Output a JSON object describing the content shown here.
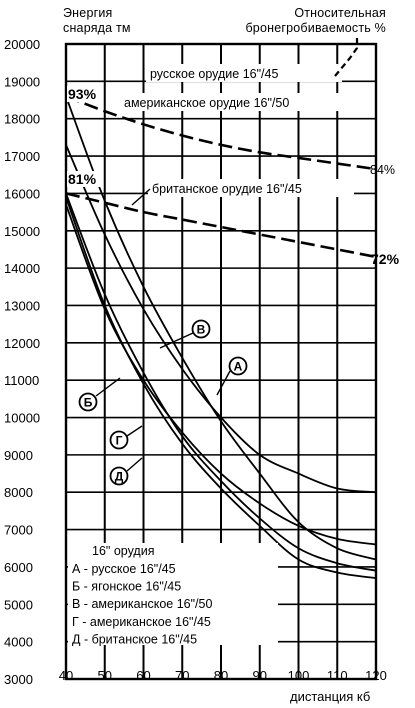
{
  "header": {
    "left_title_1": "Энергия",
    "left_title_2": "снаряда  тм",
    "right_title_1": "Относительная",
    "right_title_2": "бронегробиваемость  %"
  },
  "chart_data": {
    "type": "line",
    "xlabel": "дистанция  кб",
    "ylabel": "Энергия снаряда  тм",
    "xlim": [
      40,
      120
    ],
    "ylim": [
      3000,
      20000
    ],
    "x_ticks": [
      40,
      50,
      60,
      70,
      80,
      90,
      100,
      110,
      120
    ],
    "y_ticks": [
      3000,
      4000,
      5000,
      6000,
      7000,
      8000,
      9000,
      10000,
      11000,
      12000,
      13000,
      14000,
      15000,
      16000,
      17000,
      18000,
      19000,
      20000
    ],
    "grid": true,
    "series": [
      {
        "key": "А",
        "x": [
          40,
          50,
          60,
          70,
          80,
          90,
          100,
          110,
          120
        ],
        "y": [
          17300,
          14900,
          12900,
          11300,
          10000,
          9000,
          8500,
          8100,
          8000
        ]
      },
      {
        "key": "Б",
        "x": [
          40,
          50,
          60,
          70,
          80,
          90,
          100,
          110,
          120
        ],
        "y": [
          15700,
          12900,
          11000,
          9600,
          8500,
          7700,
          7100,
          6750,
          6600
        ]
      },
      {
        "key": "В",
        "x": [
          40,
          50,
          60,
          70,
          80,
          90,
          100,
          110,
          120
        ],
        "y": [
          18600,
          15800,
          13500,
          11600,
          9900,
          8500,
          7200,
          6500,
          6200
        ]
      },
      {
        "key": "Г",
        "x": [
          40,
          50,
          60,
          70,
          80,
          90,
          100,
          110,
          120
        ],
        "y": [
          16000,
          13300,
          11200,
          9500,
          8300,
          7300,
          6500,
          6100,
          5900
        ]
      },
      {
        "key": "Д",
        "x": [
          40,
          50,
          60,
          70,
          80,
          90,
          100,
          110,
          120
        ],
        "y": [
          15900,
          13000,
          10900,
          9300,
          8100,
          7100,
          6200,
          5850,
          5700
        ]
      }
    ],
    "relative_penetration": [
      {
        "name": "русское орудие 16\"/45",
        "flat_at": 100,
        "x": [
          40,
          120
        ],
        "y": [
          19100,
          19100
        ],
        "end_label": ""
      },
      {
        "name": "американское орудие 16\"/50",
        "start_label": "93%",
        "end_label": "84%",
        "x": [
          40,
          50,
          60,
          70,
          80,
          90,
          100,
          110,
          120
        ],
        "y": [
          18600,
          18200,
          17850,
          17550,
          17300,
          17100,
          16950,
          16800,
          16650
        ]
      },
      {
        "name": "британское орудие 16\"/45",
        "start_label": "81%",
        "end_label": "72%",
        "x": [
          40,
          50,
          60,
          70,
          80,
          90,
          100,
          110,
          120
        ],
        "y": [
          16000,
          15750,
          15500,
          15300,
          15100,
          14900,
          14700,
          14500,
          14300
        ]
      }
    ],
    "legend": {
      "title": "16\" орудия",
      "items": [
        "А - русское 16\"/45",
        "Б - ягонское 16\"/45",
        "В - американское 16\"/50",
        "Г - американское 16\"/45",
        "Д - британское 16\"/45"
      ]
    }
  }
}
